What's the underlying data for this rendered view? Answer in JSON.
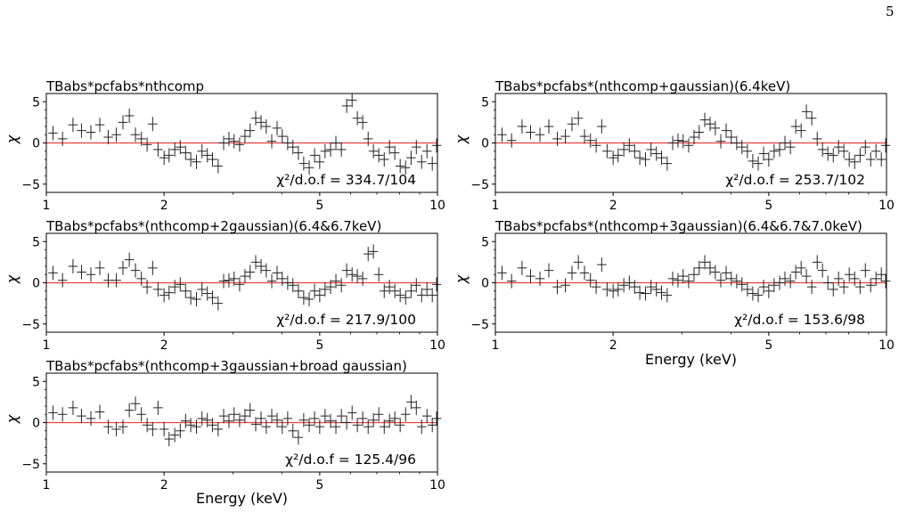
{
  "page": {
    "number": "5"
  },
  "chart_data": [
    {
      "type": "scatter",
      "title": "TBabs*pcfabs*nthcomp",
      "xlabel": "",
      "ylabel": "χ",
      "xscale": "log",
      "xlim": [
        1,
        10
      ],
      "ylim": [
        -6,
        6
      ],
      "xticks": [
        "1",
        "2",
        "5",
        "10"
      ],
      "yticks": [
        "5",
        "0",
        "−5"
      ],
      "reference_line": {
        "y": 0,
        "color": "#e8423f"
      },
      "annotation": "χ²/d.o.f = 334.7/104",
      "fit_stat": {
        "chi2": 334.7,
        "dof": 104
      },
      "x": [
        1.04,
        1.1,
        1.17,
        1.23,
        1.3,
        1.37,
        1.44,
        1.51,
        1.57,
        1.63,
        1.69,
        1.75,
        1.81,
        1.87,
        1.93,
        2.0,
        2.06,
        2.13,
        2.2,
        2.27,
        2.34,
        2.42,
        2.5,
        2.58,
        2.66,
        2.75,
        2.84,
        2.93,
        3.02,
        3.12,
        3.22,
        3.32,
        3.43,
        3.54,
        3.65,
        3.77,
        3.89,
        4.01,
        4.14,
        4.27,
        4.41,
        4.55,
        4.7,
        4.85,
        5.0,
        5.16,
        5.33,
        5.5,
        5.68,
        5.86,
        6.05,
        6.24,
        6.44,
        6.65,
        6.86,
        7.08,
        7.31,
        7.54,
        7.78,
        8.03,
        8.29,
        8.56,
        8.83,
        9.11,
        9.4,
        9.7,
        9.95
      ],
      "y": [
        1.2,
        0.5,
        2.2,
        1.5,
        1.3,
        2.2,
        0.7,
        1.0,
        2.5,
        3.3,
        1.0,
        0.5,
        -0.2,
        2.3,
        -0.8,
        -1.8,
        -1.5,
        -0.8,
        -0.5,
        -1.2,
        -2.0,
        -2.3,
        -1.0,
        -1.5,
        -2.0,
        -2.8,
        0.0,
        0.5,
        0.2,
        -0.2,
        0.8,
        1.5,
        3.0,
        2.5,
        2.0,
        0.2,
        1.8,
        0.8,
        0.0,
        -0.5,
        -1.2,
        -2.5,
        -3.0,
        -1.5,
        -2.3,
        -1.0,
        -0.8,
        0.0,
        -0.8,
        4.5,
        5.2,
        3.0,
        2.5,
        0.5,
        -1.0,
        -1.5,
        -2.0,
        -0.5,
        -1.2,
        -2.8,
        -3.0,
        -1.8,
        -0.5,
        -2.3,
        -1.0,
        -2.5,
        -0.3
      ]
    },
    {
      "type": "scatter",
      "title": "TBabs*pcfabs*(nthcomp+gaussian)(6.4keV)",
      "xlabel": "",
      "ylabel": "χ",
      "xscale": "log",
      "xlim": [
        1,
        10
      ],
      "ylim": [
        -6,
        6
      ],
      "xticks": [
        "1",
        "2",
        "5",
        "10"
      ],
      "yticks": [
        "5",
        "0",
        "−5"
      ],
      "reference_line": {
        "y": 0,
        "color": "#e8423f"
      },
      "annotation": "χ²/d.o.f = 253.7/102",
      "fit_stat": {
        "chi2": 253.7,
        "dof": 102
      },
      "x": [
        1.04,
        1.1,
        1.17,
        1.23,
        1.3,
        1.37,
        1.44,
        1.51,
        1.57,
        1.63,
        1.69,
        1.75,
        1.81,
        1.87,
        1.93,
        2.0,
        2.06,
        2.13,
        2.2,
        2.27,
        2.34,
        2.42,
        2.5,
        2.58,
        2.66,
        2.75,
        2.84,
        2.93,
        3.02,
        3.12,
        3.22,
        3.32,
        3.43,
        3.54,
        3.65,
        3.77,
        3.89,
        4.01,
        4.14,
        4.27,
        4.41,
        4.55,
        4.7,
        4.85,
        5.0,
        5.16,
        5.33,
        5.5,
        5.68,
        5.86,
        6.05,
        6.24,
        6.44,
        6.65,
        6.86,
        7.08,
        7.31,
        7.54,
        7.78,
        8.03,
        8.29,
        8.56,
        8.83,
        9.11,
        9.4,
        9.7,
        9.95
      ],
      "y": [
        1.0,
        0.3,
        2.0,
        1.3,
        1.0,
        2.0,
        0.5,
        0.8,
        2.3,
        3.0,
        0.8,
        0.3,
        -0.3,
        2.0,
        -1.0,
        -1.8,
        -1.5,
        -0.8,
        -0.3,
        -1.0,
        -1.8,
        -2.0,
        -0.8,
        -1.3,
        -1.8,
        -2.5,
        0.0,
        0.3,
        0.2,
        -0.3,
        0.7,
        1.3,
        2.8,
        2.3,
        1.8,
        0.2,
        1.5,
        0.7,
        0.0,
        -0.5,
        -1.0,
        -2.2,
        -2.5,
        -1.3,
        -2.0,
        -1.0,
        -0.8,
        0.0,
        -0.5,
        2.0,
        1.5,
        3.8,
        3.0,
        0.5,
        -0.8,
        -1.3,
        -1.5,
        -0.5,
        -1.0,
        -2.0,
        -2.3,
        -1.5,
        -0.5,
        -2.0,
        -1.0,
        -2.0,
        -0.3
      ]
    },
    {
      "type": "scatter",
      "title": "TBabs*pcfabs*(nthcomp+2gaussian)(6.4&6.7keV)",
      "xlabel": "",
      "ylabel": "χ",
      "xscale": "log",
      "xlim": [
        1,
        10
      ],
      "ylim": [
        -6,
        6
      ],
      "xticks": [
        "1",
        "2",
        "5",
        "10"
      ],
      "yticks": [
        "5",
        "0",
        "−5"
      ],
      "reference_line": {
        "y": 0,
        "color": "#e8423f"
      },
      "annotation": "χ²/d.o.f = 217.9/100",
      "fit_stat": {
        "chi2": 217.9,
        "dof": 100
      },
      "x": [
        1.04,
        1.1,
        1.17,
        1.23,
        1.3,
        1.37,
        1.44,
        1.51,
        1.57,
        1.63,
        1.69,
        1.75,
        1.81,
        1.87,
        1.93,
        2.0,
        2.06,
        2.13,
        2.2,
        2.27,
        2.34,
        2.42,
        2.5,
        2.58,
        2.66,
        2.75,
        2.84,
        2.93,
        3.02,
        3.12,
        3.22,
        3.32,
        3.43,
        3.54,
        3.65,
        3.77,
        3.89,
        4.01,
        4.14,
        4.27,
        4.41,
        4.55,
        4.7,
        4.85,
        5.0,
        5.16,
        5.33,
        5.5,
        5.68,
        5.86,
        6.05,
        6.24,
        6.44,
        6.65,
        6.86,
        7.08,
        7.31,
        7.54,
        7.78,
        8.03,
        8.29,
        8.56,
        8.83,
        9.11,
        9.4,
        9.7,
        9.95
      ],
      "y": [
        1.2,
        0.3,
        2.0,
        1.3,
        1.0,
        1.8,
        0.3,
        0.3,
        1.8,
        2.8,
        1.5,
        0.5,
        -0.5,
        1.8,
        -0.8,
        -1.5,
        -1.2,
        -0.5,
        -0.2,
        -1.0,
        -1.8,
        -2.0,
        -0.8,
        -1.3,
        -1.8,
        -2.5,
        0.2,
        0.3,
        0.5,
        -0.2,
        0.8,
        1.3,
        2.5,
        2.0,
        1.5,
        0.2,
        1.2,
        0.5,
        0.0,
        -0.3,
        -1.0,
        -1.8,
        -2.0,
        -1.0,
        -1.5,
        -0.8,
        -0.5,
        0.2,
        -0.3,
        1.5,
        1.0,
        0.8,
        0.5,
        3.5,
        3.8,
        1.0,
        -1.0,
        -0.5,
        -1.0,
        -1.5,
        -1.8,
        -1.0,
        -0.3,
        -1.5,
        -0.8,
        -1.5,
        -0.2
      ]
    },
    {
      "type": "scatter",
      "title": "TBabs*pcfabs*(nthcomp+3gaussian)(6.4&6.7&7.0keV)",
      "xlabel": "Energy (keV)",
      "ylabel": "χ",
      "xscale": "log",
      "xlim": [
        1,
        10
      ],
      "ylim": [
        -6,
        6
      ],
      "xticks": [
        "1",
        "2",
        "5",
        "10"
      ],
      "yticks": [
        "5",
        "0",
        "−5"
      ],
      "reference_line": {
        "y": 0,
        "color": "#e8423f"
      },
      "annotation": "χ²/d.o.f = 153.6/98",
      "fit_stat": {
        "chi2": 153.6,
        "dof": 98
      },
      "x": [
        1.04,
        1.1,
        1.17,
        1.23,
        1.3,
        1.37,
        1.44,
        1.51,
        1.57,
        1.63,
        1.69,
        1.75,
        1.81,
        1.87,
        1.93,
        2.0,
        2.06,
        2.13,
        2.2,
        2.27,
        2.34,
        2.42,
        2.5,
        2.58,
        2.66,
        2.75,
        2.84,
        2.93,
        3.02,
        3.12,
        3.22,
        3.32,
        3.43,
        3.54,
        3.65,
        3.77,
        3.89,
        4.01,
        4.14,
        4.27,
        4.41,
        4.55,
        4.7,
        4.85,
        5.0,
        5.16,
        5.33,
        5.5,
        5.68,
        5.86,
        6.05,
        6.24,
        6.44,
        6.65,
        6.86,
        7.08,
        7.31,
        7.54,
        7.78,
        8.03,
        8.29,
        8.56,
        8.83,
        9.11,
        9.4,
        9.7,
        9.95
      ],
      "y": [
        1.2,
        0.2,
        1.8,
        0.8,
        0.5,
        1.5,
        -0.5,
        -0.3,
        1.2,
        2.5,
        1.2,
        0.3,
        -0.5,
        2.2,
        -0.8,
        -1.0,
        -0.8,
        -0.3,
        0.0,
        -0.5,
        -1.2,
        -1.3,
        -0.5,
        -0.8,
        -1.2,
        -1.5,
        0.5,
        0.3,
        0.8,
        0.2,
        1.0,
        1.8,
        2.5,
        1.8,
        1.3,
        0.3,
        1.2,
        0.5,
        0.2,
        -0.2,
        -0.8,
        -1.3,
        -1.5,
        -0.5,
        -1.0,
        -0.3,
        0.0,
        0.5,
        0.2,
        1.3,
        1.8,
        0.8,
        -0.5,
        2.5,
        1.5,
        0.0,
        -0.8,
        0.5,
        -0.5,
        1.0,
        0.5,
        -0.5,
        1.5,
        -0.3,
        0.5,
        1.0,
        0.2
      ]
    },
    {
      "type": "scatter",
      "title": "TBabs*pcfabs*(nthcomp+3gaussian+broad gaussian)",
      "xlabel": "Energy (keV)",
      "ylabel": "χ",
      "xscale": "log",
      "xlim": [
        1,
        10
      ],
      "ylim": [
        -6,
        6
      ],
      "xticks": [
        "1",
        "2",
        "5",
        "10"
      ],
      "yticks": [
        "5",
        "0",
        "−5"
      ],
      "reference_line": {
        "y": 0,
        "color": "#e8423f"
      },
      "annotation": "χ²/d.o.f = 125.4/96",
      "fit_stat": {
        "chi2": 125.4,
        "dof": 96
      },
      "x": [
        1.04,
        1.1,
        1.17,
        1.23,
        1.3,
        1.37,
        1.44,
        1.51,
        1.57,
        1.63,
        1.69,
        1.75,
        1.81,
        1.87,
        1.93,
        2.0,
        2.06,
        2.13,
        2.2,
        2.27,
        2.34,
        2.42,
        2.5,
        2.58,
        2.66,
        2.75,
        2.84,
        2.93,
        3.02,
        3.12,
        3.22,
        3.32,
        3.43,
        3.54,
        3.65,
        3.77,
        3.89,
        4.01,
        4.14,
        4.27,
        4.41,
        4.55,
        4.7,
        4.85,
        5.0,
        5.16,
        5.33,
        5.5,
        5.68,
        5.86,
        6.05,
        6.24,
        6.44,
        6.65,
        6.86,
        7.08,
        7.31,
        7.54,
        7.78,
        8.03,
        8.29,
        8.56,
        8.83,
        9.11,
        9.4,
        9.7,
        9.95
      ],
      "y": [
        1.2,
        1.0,
        1.8,
        0.8,
        0.5,
        1.3,
        -0.5,
        -0.8,
        -0.5,
        1.5,
        2.3,
        1.0,
        -0.3,
        -0.8,
        1.8,
        -0.8,
        -2.0,
        -1.5,
        -1.0,
        0.2,
        -0.3,
        -0.5,
        0.5,
        0.3,
        -0.3,
        -0.8,
        0.8,
        0.2,
        1.0,
        0.3,
        0.8,
        1.5,
        -0.2,
        0.5,
        -0.5,
        0.8,
        0.3,
        -0.5,
        0.5,
        -1.0,
        -1.8,
        0.3,
        -0.3,
        0.5,
        -0.5,
        0.8,
        0.2,
        -0.5,
        0.8,
        0.0,
        1.2,
        -0.3,
        0.5,
        -0.5,
        0.3,
        1.0,
        -0.5,
        0.2,
        0.5,
        -0.3,
        1.0,
        2.5,
        1.8,
        -0.5,
        0.8,
        -0.3,
        0.5
      ]
    }
  ]
}
